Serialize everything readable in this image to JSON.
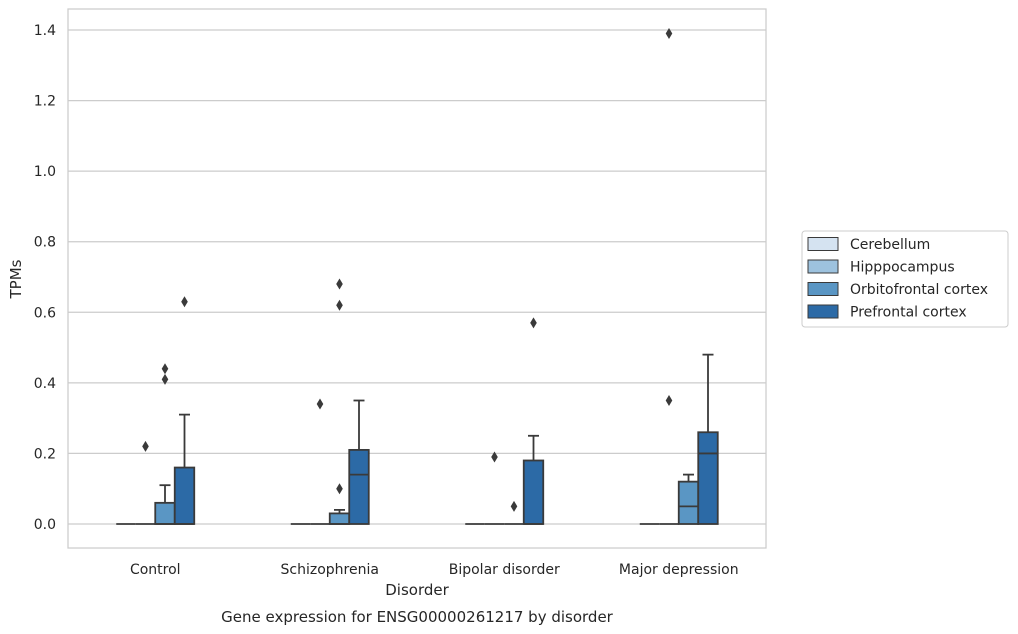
{
  "chart_data": {
    "type": "box",
    "title": "",
    "caption": "Gene expression for ENSG00000261217 by disorder",
    "xlabel": "Disorder",
    "ylabel": "TPMs",
    "ylim": [
      -0.07,
      1.46
    ],
    "yticks": [
      "0.0",
      "0.2",
      "0.4",
      "0.6",
      "0.8",
      "1.0",
      "1.2",
      "1.4"
    ],
    "grid": true,
    "legend_position": "right",
    "categories": [
      "Control",
      "Schizophrenia",
      "Bipolar disorder",
      "Major depression"
    ],
    "series": [
      {
        "name": "Cerebellum",
        "color": "#d5e3f1",
        "boxes": [
          {
            "q1": 0,
            "median": 0,
            "q3": 0,
            "whisker_low": 0,
            "whisker_high": 0,
            "outliers": []
          },
          {
            "q1": 0,
            "median": 0,
            "q3": 0,
            "whisker_low": 0,
            "whisker_high": 0,
            "outliers": []
          },
          {
            "q1": 0,
            "median": 0,
            "q3": 0,
            "whisker_low": 0,
            "whisker_high": 0,
            "outliers": []
          },
          {
            "q1": 0,
            "median": 0,
            "q3": 0,
            "whisker_low": 0,
            "whisker_high": 0,
            "outliers": []
          }
        ]
      },
      {
        "name": "Hipppocampus",
        "color": "#9dc2de",
        "boxes": [
          {
            "q1": 0,
            "median": 0,
            "q3": 0,
            "whisker_low": 0,
            "whisker_high": 0,
            "outliers": [
              0.22
            ]
          },
          {
            "q1": 0,
            "median": 0,
            "q3": 0,
            "whisker_low": 0,
            "whisker_high": 0,
            "outliers": [
              0.34
            ]
          },
          {
            "q1": 0,
            "median": 0,
            "q3": 0,
            "whisker_low": 0,
            "whisker_high": 0,
            "outliers": [
              0.19
            ]
          },
          {
            "q1": 0,
            "median": 0,
            "q3": 0,
            "whisker_low": 0,
            "whisker_high": 0,
            "outliers": [
              1.39,
              0.35
            ]
          }
        ]
      },
      {
        "name": "Orbitofrontal cortex",
        "color": "#5a96c4",
        "boxes": [
          {
            "q1": 0,
            "median": 0,
            "q3": 0.06,
            "whisker_low": 0,
            "whisker_high": 0.11,
            "outliers": [
              0.41,
              0.44
            ]
          },
          {
            "q1": 0,
            "median": 0,
            "q3": 0.03,
            "whisker_low": 0,
            "whisker_high": 0.04,
            "outliers": [
              0.1,
              0.62,
              0.68
            ]
          },
          {
            "q1": 0,
            "median": 0,
            "q3": 0,
            "whisker_low": 0,
            "whisker_high": 0,
            "outliers": [
              0.05
            ]
          },
          {
            "q1": 0,
            "median": 0.05,
            "q3": 0.12,
            "whisker_low": 0,
            "whisker_high": 0.14,
            "outliers": []
          }
        ]
      },
      {
        "name": "Prefrontal cortex",
        "color": "#2c6aa6",
        "boxes": [
          {
            "q1": 0,
            "median": 0,
            "q3": 0.16,
            "whisker_low": 0,
            "whisker_high": 0.31,
            "outliers": [
              0.63
            ]
          },
          {
            "q1": 0,
            "median": 0.14,
            "q3": 0.21,
            "whisker_low": 0,
            "whisker_high": 0.35,
            "outliers": []
          },
          {
            "q1": 0,
            "median": 0,
            "q3": 0.18,
            "whisker_low": 0,
            "whisker_high": 0.25,
            "outliers": [
              0.57
            ]
          },
          {
            "q1": 0,
            "median": 0.2,
            "q3": 0.26,
            "whisker_low": 0,
            "whisker_high": 0.48,
            "outliers": []
          }
        ]
      }
    ]
  }
}
